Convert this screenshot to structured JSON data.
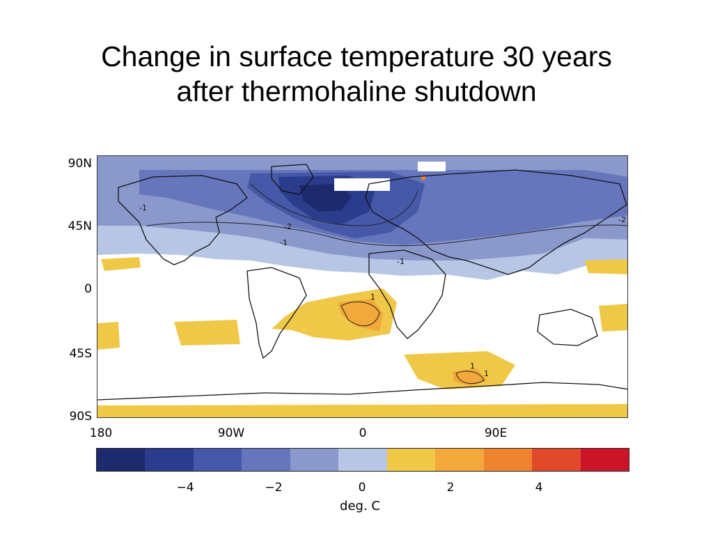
{
  "title": {
    "line1": "Change in surface temperature 30 years",
    "line2": "after thermohaline shutdown"
  },
  "map": {
    "lat_labels": [
      "90N",
      "45N",
      "0",
      "45S",
      "90S"
    ],
    "lon_labels": [
      "180",
      "90W",
      "0",
      "90E"
    ],
    "contour_labels": [
      "-1",
      "-1",
      "-1",
      "-2",
      "1",
      "1",
      "-2",
      "1"
    ]
  },
  "colorbar": {
    "colors": [
      "#1e2a6e",
      "#2c3c8c",
      "#4658a8",
      "#6676bc",
      "#8a98cc",
      "#b6c6e4",
      "#f0c848",
      "#f2a83a",
      "#ee8430",
      "#e04a2a",
      "#cc1428"
    ],
    "tick_labels": [
      "−4",
      "−2",
      "0",
      "2",
      "4"
    ],
    "units": "deg. C"
  }
}
